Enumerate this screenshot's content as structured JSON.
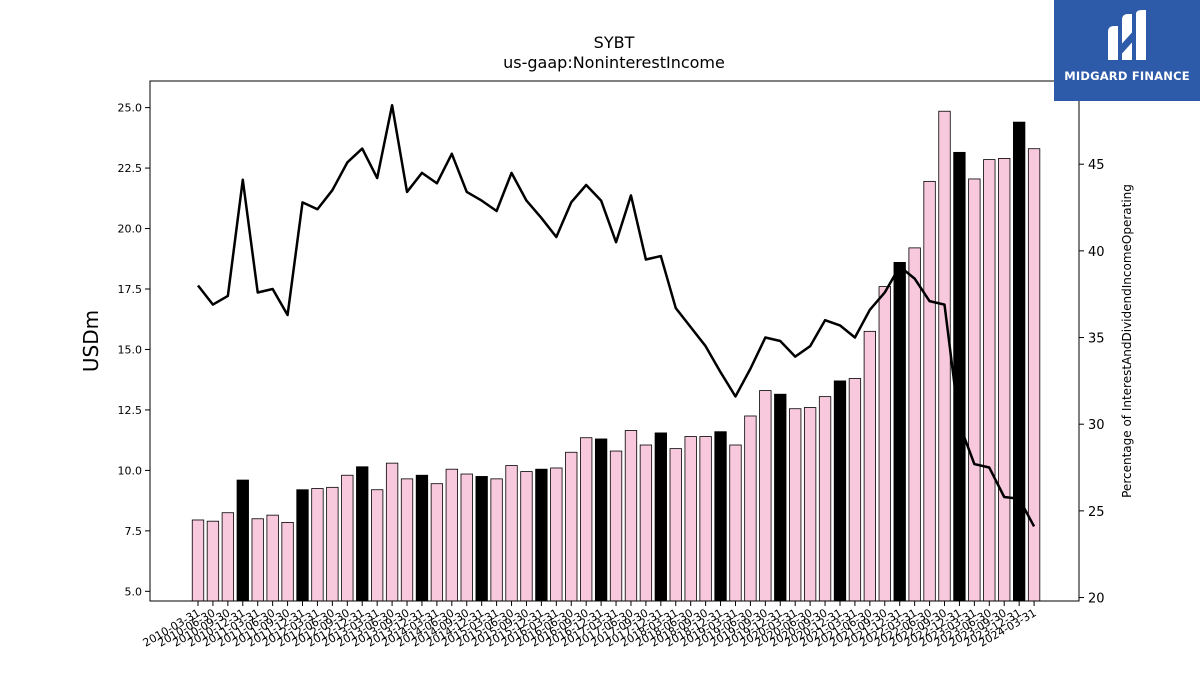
{
  "chart_data": {
    "type": "bar",
    "title": "SYBT",
    "subtitle": "us-gaap:NoninterestIncome",
    "ylabel": "USDm",
    "ylabel_right": "Percentage of InterestAndDividendIncomeOperating",
    "ylim": [
      4.6,
      26.1
    ],
    "ylim_right": [
      19.8,
      49.8
    ],
    "yticks": [
      "5.0",
      "7.5",
      "10.0",
      "12.5",
      "15.0",
      "17.5",
      "20.0",
      "22.5",
      "25.0"
    ],
    "yticks_right": [
      "20",
      "25",
      "30",
      "35",
      "40",
      "45"
    ],
    "bar_color": "#f8c8dc",
    "highlight_color": "#000000",
    "line_color": "#000000",
    "categories": [
      "2010-03-31",
      "2010-06-30",
      "2010-09-30",
      "2010-12-31",
      "2011-03-31",
      "2011-06-30",
      "2011-09-30",
      "2011-12-31",
      "2012-03-31",
      "2012-06-30",
      "2012-09-30",
      "2012-12-31",
      "2013-03-31",
      "2013-06-30",
      "2013-09-30",
      "2013-12-31",
      "2014-03-31",
      "2014-06-30",
      "2014-09-30",
      "2014-12-31",
      "2015-03-31",
      "2015-06-30",
      "2015-09-30",
      "2015-12-31",
      "2016-03-31",
      "2016-06-30",
      "2016-09-30",
      "2016-12-31",
      "2017-03-31",
      "2017-06-30",
      "2017-09-30",
      "2017-12-31",
      "2018-03-31",
      "2018-06-30",
      "2018-09-30",
      "2018-12-31",
      "2019-03-31",
      "2019-06-30",
      "2019-09-30",
      "2019-12-31",
      "2020-03-31",
      "2020-06-30",
      "2020-09-30",
      "2020-12-31",
      "2021-03-31",
      "2021-06-30",
      "2021-09-30",
      "2021-12-31",
      "2022-03-31",
      "2022-06-30",
      "2022-09-30",
      "2022-12-31",
      "2023-03-31",
      "2023-06-30",
      "2023-09-30",
      "2023-12-31",
      "2024-03-31"
    ],
    "series": [
      {
        "type": "bar",
        "values": [
          7.95,
          7.9,
          8.25,
          9.6,
          8.0,
          8.15,
          7.85,
          9.2,
          9.25,
          9.3,
          9.8,
          10.15,
          9.2,
          10.3,
          9.65,
          9.8,
          9.45,
          10.05,
          9.85,
          9.75,
          9.65,
          10.2,
          9.95,
          10.05,
          10.1,
          10.75,
          11.35,
          11.3,
          10.8,
          11.65,
          11.05,
          11.55,
          10.9,
          11.4,
          11.4,
          11.6,
          11.05,
          12.25,
          13.3,
          13.15,
          12.55,
          12.6,
          13.05,
          13.7,
          13.8,
          15.75,
          17.6,
          18.6,
          19.2,
          21.95,
          24.85,
          23.15,
          22.05,
          22.85,
          22.9,
          24.4,
          23.3
        ],
        "highlight": [
          false,
          false,
          false,
          true,
          false,
          false,
          false,
          true,
          false,
          false,
          false,
          true,
          false,
          false,
          false,
          true,
          false,
          false,
          false,
          true,
          false,
          false,
          false,
          true,
          false,
          false,
          false,
          true,
          false,
          false,
          false,
          true,
          false,
          false,
          false,
          true,
          false,
          false,
          false,
          true,
          false,
          false,
          false,
          true,
          false,
          false,
          false,
          true,
          false,
          false,
          false,
          true,
          false,
          false,
          false,
          true,
          false
        ]
      },
      {
        "type": "line",
        "axis": "right",
        "values": [
          38.0,
          36.9,
          37.4,
          44.1,
          37.6,
          37.8,
          36.3,
          42.8,
          42.4,
          43.5,
          45.1,
          45.9,
          44.2,
          48.4,
          43.4,
          44.5,
          43.9,
          45.6,
          43.4,
          42.9,
          42.3,
          44.5,
          42.9,
          41.9,
          40.8,
          42.8,
          43.8,
          42.9,
          40.5,
          43.2,
          39.5,
          39.7,
          36.7,
          35.6,
          34.5,
          33.0,
          31.6,
          33.2,
          35.0,
          34.8,
          33.9,
          34.5,
          36.0,
          35.7,
          35.0,
          36.6,
          37.6,
          39.1,
          38.4,
          37.1,
          36.9,
          30.0,
          27.7,
          27.5,
          25.8,
          25.7,
          24.1
        ]
      }
    ],
    "grid": false,
    "legend": "none"
  },
  "logo": {
    "text": "MIDGARD FINANCE",
    "icon": "midgard-logo-icon",
    "color": "#2d5aa9"
  }
}
